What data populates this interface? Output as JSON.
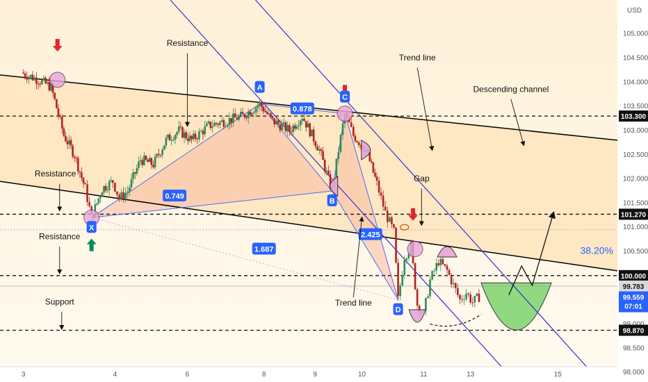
{
  "chart_data": {
    "type": "candlestick",
    "currency_label": "USD",
    "x_ticks": [
      "3",
      "4",
      "6",
      "8",
      "9",
      "10",
      "11",
      "13",
      "15"
    ],
    "y_ticks": [
      "98.000",
      "98.500",
      "99.000",
      "99.500",
      "100.000",
      "100.500",
      "101.000",
      "101.500",
      "102.000",
      "102.500",
      "103.000",
      "103.500",
      "104.000",
      "104.500",
      "105.000"
    ],
    "levels": [
      {
        "label": "103.300",
        "value": 103.3,
        "style": "dashed"
      },
      {
        "label": "101.270",
        "value": 101.27,
        "style": "dashed"
      },
      {
        "label": "100.000",
        "value": 100.0,
        "style": "dashed"
      },
      {
        "label": "98.870",
        "value": 98.87,
        "style": "dashed"
      }
    ],
    "price_tags": [
      {
        "label": "99.783",
        "value": 99.783
      },
      {
        "label": "99.559",
        "value": 99.559
      },
      {
        "label": "07:01"
      }
    ],
    "fib_label": "38.20%",
    "pattern_points": [
      {
        "label": "X",
        "x": 3.65,
        "y": 101.2
      },
      {
        "label": "A",
        "x": 7.6,
        "y": 103.55
      },
      {
        "label": "B",
        "x": 9.3,
        "y": 101.75
      },
      {
        "label": "C",
        "x": 9.6,
        "y": 103.35
      },
      {
        "label": "D",
        "x": 10.85,
        "y": 99.5
      }
    ],
    "ratios": [
      {
        "label": "0.749",
        "x": 5.6,
        "y": 101.65
      },
      {
        "label": "0.878",
        "x": 8.6,
        "y": 103.45
      },
      {
        "label": "2.425",
        "x": 10.2,
        "y": 100.85
      },
      {
        "label": "1.687",
        "x": 7.7,
        "y": 100.55
      }
    ],
    "annotations": [
      {
        "text": "Resistance",
        "x": 5.9,
        "y": 104.75
      },
      {
        "text": "Resistance",
        "x": 2.8,
        "y": 102.05
      },
      {
        "text": "Resistance",
        "x": 2.9,
        "y": 100.75
      },
      {
        "text": "Support",
        "x": 2.9,
        "y": 99.4
      },
      {
        "text": "Trend line",
        "x": 11.3,
        "y": 104.45
      },
      {
        "text": "Descending channel",
        "x": 13.5,
        "y": 103.8
      },
      {
        "text": "Gap",
        "x": 11.4,
        "y": 101.95
      },
      {
        "text": "Trend line",
        "x": 9.8,
        "y": 99.38
      }
    ],
    "price_path": [
      [
        2.0,
        104.2
      ],
      [
        2.4,
        104.05
      ],
      [
        2.7,
        103.9
      ],
      [
        3.0,
        102.9
      ],
      [
        3.25,
        102.5
      ],
      [
        3.5,
        101.8
      ],
      [
        3.65,
        101.2
      ],
      [
        3.9,
        101.8
      ],
      [
        4.15,
        101.95
      ],
      [
        4.3,
        101.6
      ],
      [
        4.5,
        101.75
      ],
      [
        4.8,
        102.4
      ],
      [
        5.1,
        102.3
      ],
      [
        5.4,
        102.8
      ],
      [
        5.7,
        103.0
      ],
      [
        6.0,
        102.8
      ],
      [
        6.4,
        103.1
      ],
      [
        6.8,
        103.2
      ],
      [
        7.2,
        103.3
      ],
      [
        7.6,
        103.55
      ],
      [
        7.9,
        103.2
      ],
      [
        8.3,
        103.0
      ],
      [
        8.6,
        103.3
      ],
      [
        9.0,
        102.6
      ],
      [
        9.3,
        101.75
      ],
      [
        9.45,
        102.6
      ],
      [
        9.6,
        103.35
      ],
      [
        9.8,
        102.9
      ],
      [
        10.1,
        102.6
      ],
      [
        10.35,
        101.9
      ],
      [
        10.55,
        101.3
      ],
      [
        10.75,
        100.9
      ],
      [
        10.85,
        99.5
      ],
      [
        11.0,
        100.4
      ],
      [
        11.15,
        100.6
      ],
      [
        11.3,
        99.4
      ],
      [
        11.45,
        99.2
      ],
      [
        11.6,
        99.9
      ],
      [
        11.8,
        100.3
      ],
      [
        12.0,
        100.1
      ],
      [
        12.15,
        99.8
      ],
      [
        12.3,
        99.5
      ],
      [
        12.45,
        99.65
      ],
      [
        12.6,
        99.45
      ],
      [
        12.75,
        99.56
      ]
    ],
    "projection_path": [
      [
        13.45,
        99.6
      ],
      [
        13.75,
        100.2
      ],
      [
        14.0,
        99.8
      ],
      [
        14.5,
        101.3
      ]
    ],
    "channel_lines": [
      {
        "name": "upper",
        "p1": [
          1.5,
          104.15
        ],
        "p2": [
          16.0,
          102.8
        ]
      },
      {
        "name": "lower",
        "p1": [
          1.5,
          101.95
        ],
        "p2": [
          16.0,
          100.1
        ]
      }
    ],
    "trend_lines": [
      {
        "p1": [
          5.5,
          105.7
        ],
        "p2": [
          13.6,
          97.8
        ]
      },
      {
        "p1": [
          7.5,
          105.7
        ],
        "p2": [
          15.6,
          97.8
        ]
      }
    ],
    "arrows": [
      {
        "dir": "down",
        "color": "#e0242e",
        "x": 2.85,
        "y": 104.75
      },
      {
        "dir": "down",
        "color": "#e0242e",
        "x": 9.6,
        "y": 103.8
      },
      {
        "dir": "down",
        "color": "#e0242e",
        "x": 11.2,
        "y": 101.25
      },
      {
        "dir": "up",
        "color": "#0b8a5c",
        "x": 3.65,
        "y": 100.65
      }
    ],
    "colors": {
      "up": "#2e8b57",
      "down": "#b22222",
      "badge": "#2962ff",
      "channel_fill": "#fde3b8",
      "pattern_fill": "#f8bfa5",
      "green_zone": "#86d675",
      "pink_marker": "#e7a7d9"
    }
  }
}
